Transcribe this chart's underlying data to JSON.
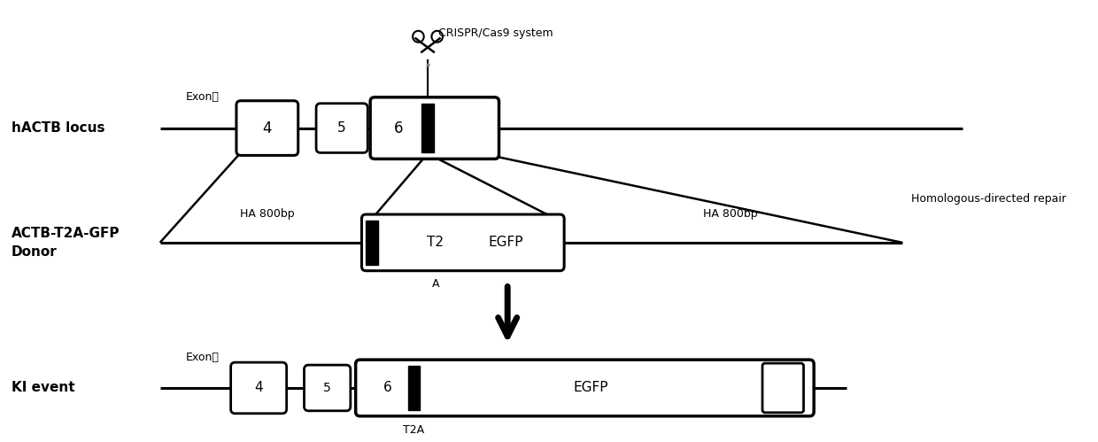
{
  "bg_color": "#ffffff",
  "fig_width": 12.4,
  "fig_height": 4.99,
  "dpi": 100,
  "line_color": "#000000",
  "box_facecolor": "#ffffff",
  "box_edgecolor": "#000000",
  "black_fill": "#000000",
  "hactb_label": "hACTB locus",
  "actb_donor_label": "ACTB-T2A-GFP\nDonor",
  "ki_label": "KI event",
  "exon_label": "Exon：",
  "crispr_label": "CRISPR/Cas9 system",
  "ha_left_label": "HA 800bp",
  "ha_right_label": "HA 800bp",
  "hdr_label": "Homologous-directed repair",
  "t2a_label_bottom": "T2A",
  "egfp_donor_label": "EGFP",
  "t2a_donor_label": "T2",
  "t2a_donor_sub": "A",
  "exon4_label": "4",
  "exon5_label": "5",
  "exon6_label": "6",
  "egfp_ki_label": "EGFP",
  "t2a_ki_label": "T2A"
}
